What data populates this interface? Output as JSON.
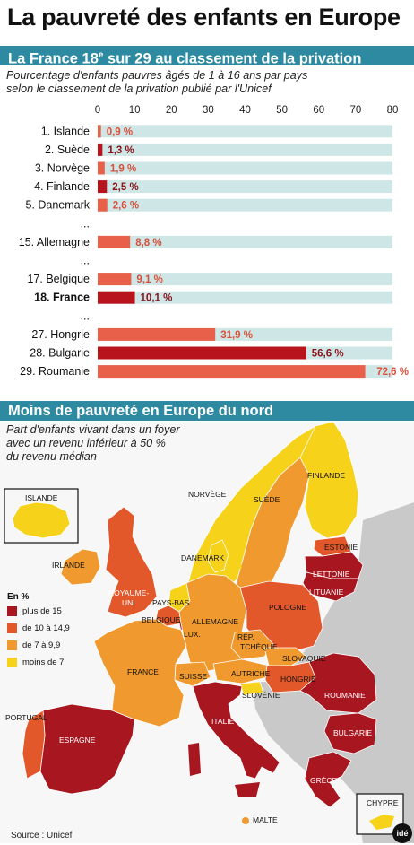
{
  "title": "La pauvreté des enfants en Europe",
  "section1": {
    "heading_main": "La France 18",
    "heading_sup": "e",
    "heading_rest": " sur 29 au classement de la privation",
    "subtitle_line1": "Pourcentage d'enfants pauvres âgés de 1 à 16 ans par pays",
    "subtitle_line2": "selon le classement de la privation publié par l'Unicef"
  },
  "chart_data": {
    "type": "bar",
    "orientation": "horizontal",
    "xlim": [
      0,
      80
    ],
    "xticks": [
      "0",
      "10",
      "20",
      "30",
      "40",
      "50",
      "60",
      "70",
      "80"
    ],
    "rows": [
      {
        "label": "1. Islande",
        "value": 0.9,
        "value_label": "0,9 %"
      },
      {
        "label": "2. Suède",
        "value": 1.3,
        "value_label": "1,3 %"
      },
      {
        "label": "3. Norvège",
        "value": 1.9,
        "value_label": "1,9 %"
      },
      {
        "label": "4. Finlande",
        "value": 2.5,
        "value_label": "2,5 %"
      },
      {
        "label": "5. Danemark",
        "value": 2.6,
        "value_label": "2,6 %"
      },
      {
        "label": "...",
        "separator": true
      },
      {
        "label": "15. Allemagne",
        "value": 8.8,
        "value_label": "8,8 %"
      },
      {
        "label": "...",
        "separator": true
      },
      {
        "label": "17. Belgique",
        "value": 9.1,
        "value_label": "9,1 %"
      },
      {
        "label": "18. France",
        "value": 10.1,
        "value_label": "10,1 %",
        "highlight": true
      },
      {
        "label": "...",
        "separator": true
      },
      {
        "label": "27. Hongrie",
        "value": 31.9,
        "value_label": "31,9 %"
      },
      {
        "label": "28. Bulgarie",
        "value": 56.6,
        "value_label": "56,6 %"
      },
      {
        "label": "29. Roumanie",
        "value": 72.6,
        "value_label": "72,6 %"
      }
    ]
  },
  "section2": {
    "heading": "Moins de pauvreté en Europe du nord",
    "subtitle_line1": "Part d'enfants vivant dans un foyer",
    "subtitle_line2": "avec un revenu inférieur à 50 %",
    "subtitle_line3": "du revenu médian"
  },
  "colors": {
    "band": "#2e8aa0",
    "row_bg": "#cfe6e6",
    "bar_light": "#e8604a",
    "bar_dark": "#b8141d",
    "map_dark": "#a81620",
    "map_mid": "#e3582a",
    "map_light": "#f0992e",
    "map_yellow": "#f7d21a",
    "sea": "#f7f7f7",
    "other_land": "#c9c9c9"
  },
  "map": {
    "legend_title": "En %",
    "legend": [
      {
        "label": "plus de 15",
        "color": "#a81620"
      },
      {
        "label": "de 10 à 14,9",
        "color": "#e3582a"
      },
      {
        "label": "de 7 à 9,9",
        "color": "#f0992e"
      },
      {
        "label": "moins de 7",
        "color": "#f7d21a"
      }
    ],
    "countries": {
      "islande": "ISLANDE",
      "norvege": "NORVÈGE",
      "suede": "SUÈDE",
      "finlande": "FINLANDE",
      "estonie": "ESTONIE",
      "lettonie": "LETTONIE",
      "lituanie": "LITUANIE",
      "danemark": "DANEMARK",
      "irlande": "IRLANDE",
      "royaume_uni_1": "ROYAUME-",
      "royaume_uni_2": "UNI",
      "pays_bas": "PAYS-BAS",
      "belgique": "BELGIQUE",
      "lux": "LUX.",
      "allemagne": "ALLEMAGNE",
      "pologne": "POLOGNE",
      "rep_tcheque_1": "RÉP.",
      "rep_tcheque_2": "TCHÈQUE",
      "slovaquie": "SLOVAQUIE",
      "france": "FRANCE",
      "suisse": "SUISSE",
      "autriche": "AUTRICHE",
      "hongrie": "HONGRIE",
      "slovenie": "SLOVÉNIE",
      "roumanie": "ROUMANIE",
      "bulgarie": "BULGARIE",
      "portugal": "PORTUGAL",
      "espagne": "ESPAGNE",
      "italie": "ITALIE",
      "grece": "GRÈCE",
      "chypre": "CHYPRE",
      "malte": "MALTE"
    }
  },
  "source": "Source : Unicef",
  "logo": "idé"
}
